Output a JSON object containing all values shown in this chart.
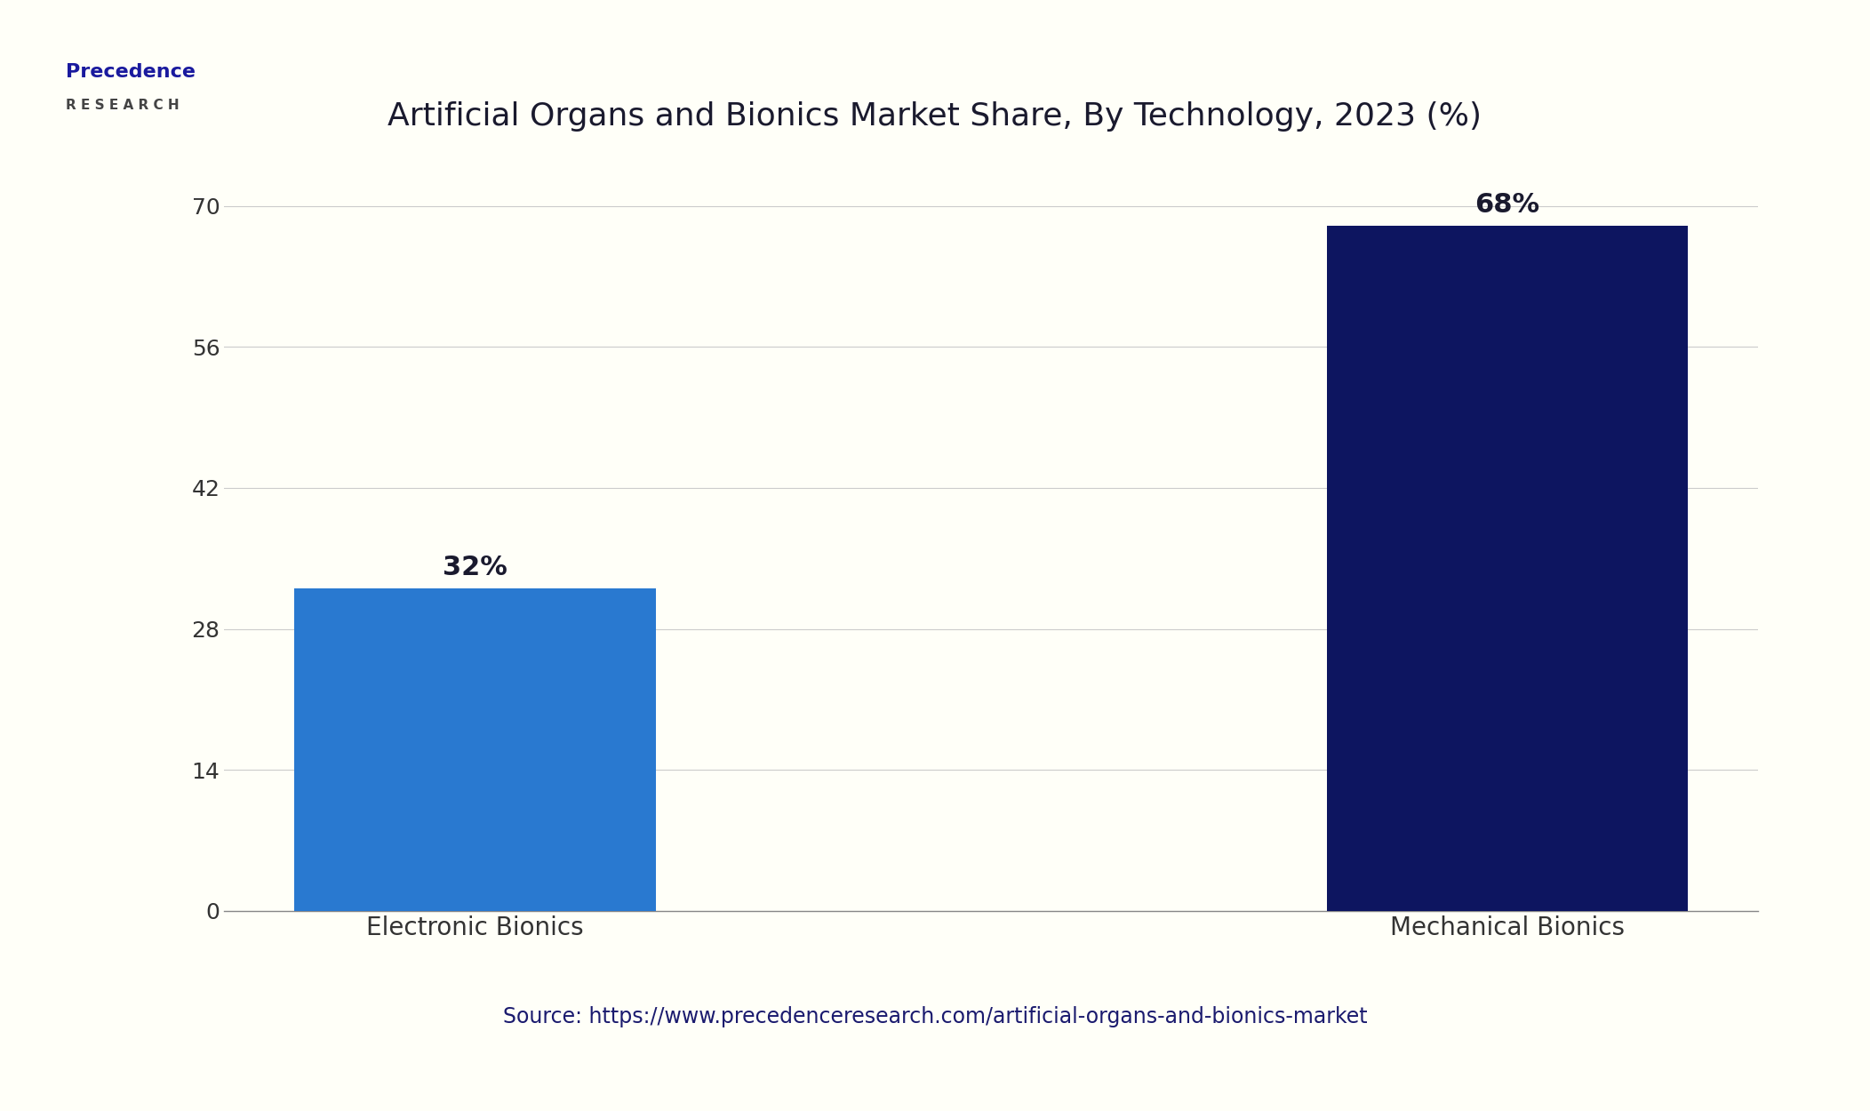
{
  "title": "Artificial Organs and Bionics Market Share, By Technology, 2023 (%)",
  "categories": [
    "Electronic Bionics",
    "Mechanical Bionics"
  ],
  "values": [
    32,
    68
  ],
  "bar_colors": [
    "#2979d0",
    "#0d1560"
  ],
  "bar_labels": [
    "32%",
    "68%"
  ],
  "yticks": [
    0,
    14,
    28,
    42,
    56,
    70
  ],
  "ylim": [
    0,
    75
  ],
  "source_text": "Source: https://www.precedenceresearch.com/artificial-organs-and-bionics-market",
  "background_color": "#fffff8",
  "title_color": "#1a1a2e",
  "source_color": "#1a1a6e",
  "tick_color": "#333333",
  "grid_color": "#cccccc",
  "border_color": "#0d1560",
  "bar_width": 0.35,
  "title_fontsize": 26,
  "label_fontsize": 20,
  "tick_fontsize": 18,
  "source_fontsize": 17,
  "bar_label_fontsize": 22,
  "logo_text1": "Precedence",
  "logo_text2": "R E S E A R C H",
  "logo_color1": "#1a1a9e",
  "logo_color2": "#444444"
}
